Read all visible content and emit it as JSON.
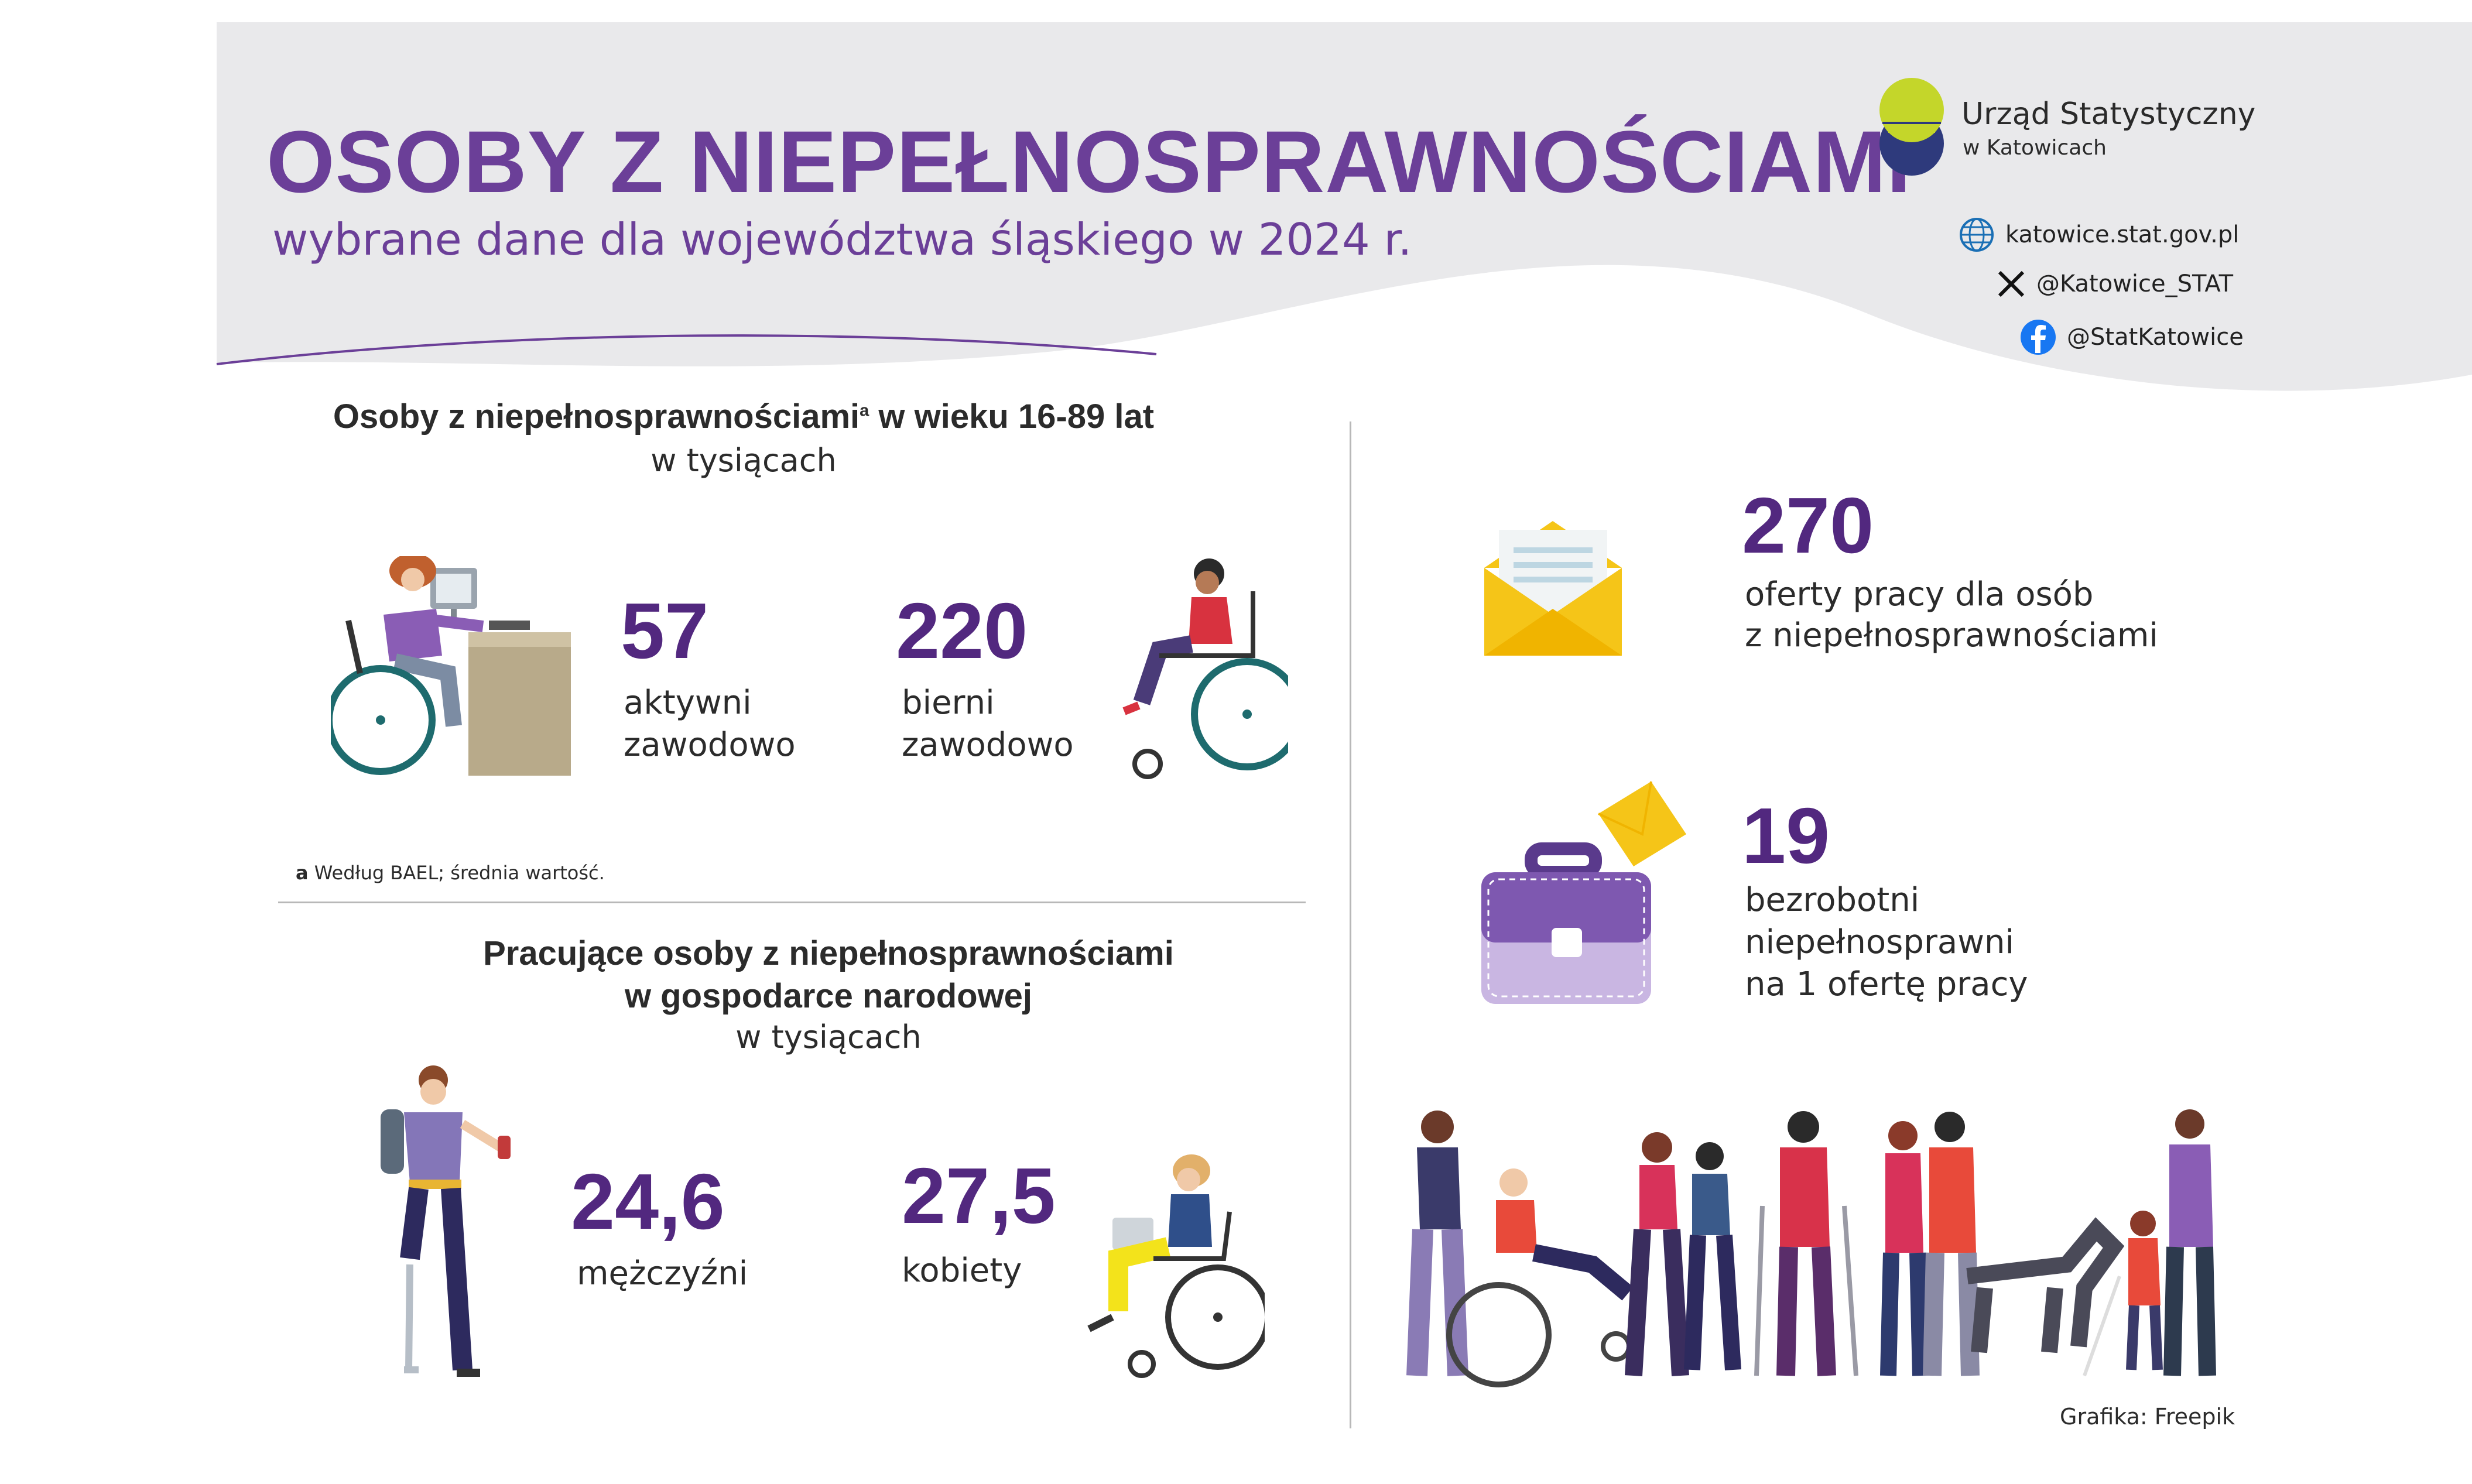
{
  "header": {
    "title": "OSOBY Z NIEPEŁNOSPRAWNOŚCIAMI",
    "subtitle": "wybrane dane dla województwa śląskiego w 2024 r."
  },
  "logo": {
    "name": "Urząd Statystyczny",
    "city": "w Katowicach",
    "colors": {
      "lime": "#c4d62a",
      "navy": "#2e3a7c"
    }
  },
  "contacts": {
    "website": "katowice.stat.gov.pl",
    "x": "@Katowice_STAT",
    "facebook": "@StatKatowice"
  },
  "section1": {
    "heading": "Osoby z niepełnosprawnościami",
    "heading_mark": "a",
    "heading_rest": " w wieku 16-89 lat",
    "unit": "w tysiącach",
    "active": {
      "value": "57",
      "label_line1": "aktywni",
      "label_line2": "zawodowo"
    },
    "inactive": {
      "value": "220",
      "label_line1": "bierni",
      "label_line2": "zawodowo"
    },
    "footnote_mark": "a",
    "footnote_text": " Według BAEL; średnia wartość."
  },
  "section2": {
    "heading_line1": "Pracujące osoby z niepełnosprawnościami",
    "heading_line2": "w gospodarce narodowej",
    "unit": "w tysiącach",
    "men": {
      "value": "24,6",
      "label": "mężczyźni"
    },
    "women": {
      "value": "27,5",
      "label": "kobiety"
    }
  },
  "right": {
    "offers": {
      "value": "270",
      "label_line1": "oferty pracy dla osób",
      "label_line2": "z niepełnosprawnościami"
    },
    "unemployed": {
      "value": "19",
      "label_line1": "bezrobotni",
      "label_line2": "niepełnosprawni",
      "label_line3": "na 1 ofertę pracy"
    },
    "credit": "Grafika: Freepik"
  },
  "colors": {
    "accent": "#6b3f98",
    "number": "#52287f",
    "banner": "#e9e9eb"
  }
}
